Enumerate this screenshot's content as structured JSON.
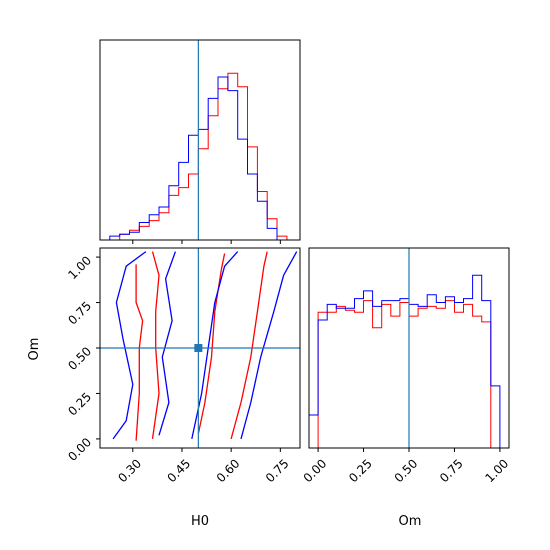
{
  "chart_data": {
    "type": "corner",
    "colors": {
      "red": "#ff0000",
      "blue": "#0000ff",
      "truth": "#1f77b4",
      "frame": "#000000"
    },
    "truth": {
      "H0": 0.5,
      "Om": 0.5
    },
    "labels": {
      "x_bottom_left": "H0",
      "y_bottom_left": "Om",
      "x_bottom_right": "Om"
    },
    "h0_ticks": [
      "0.30",
      "0.45",
      "0.60",
      "0.75"
    ],
    "om_ticks": [
      "0.00",
      "0.25",
      "0.50",
      "0.75",
      "1.00"
    ],
    "hist_h0": {
      "title": "",
      "xlim": [
        0.2,
        0.81
      ],
      "bins": [
        0.23,
        0.26,
        0.29,
        0.32,
        0.35,
        0.38,
        0.41,
        0.44,
        0.47,
        0.5,
        0.53,
        0.56,
        0.59,
        0.62,
        0.65,
        0.68,
        0.71,
        0.74,
        0.77
      ],
      "series": [
        {
          "color": "red",
          "values": [
            0.0,
            0.03,
            0.05,
            0.07,
            0.1,
            0.14,
            0.23,
            0.27,
            0.34,
            0.47,
            0.64,
            0.78,
            0.86,
            0.79,
            0.48,
            0.25,
            0.11,
            0.02
          ]
        },
        {
          "color": "blue",
          "values": [
            0.02,
            0.03,
            0.04,
            0.09,
            0.13,
            0.17,
            0.28,
            0.4,
            0.54,
            0.57,
            0.73,
            0.84,
            0.77,
            0.52,
            0.34,
            0.2,
            0.06,
            0.0
          ]
        }
      ]
    },
    "hist_om": {
      "xlim": [
        -0.05,
        1.05
      ],
      "bins": [
        -0.05,
        0.0,
        0.05,
        0.1,
        0.15,
        0.2,
        0.25,
        0.3,
        0.35,
        0.4,
        0.45,
        0.5,
        0.55,
        0.6,
        0.65,
        0.7,
        0.75,
        0.8,
        0.85,
        0.9,
        0.95,
        1.0
      ],
      "series": [
        {
          "color": "red",
          "values": [
            0.0,
            0.7,
            0.7,
            0.73,
            0.71,
            0.7,
            0.76,
            0.62,
            0.74,
            0.68,
            0.75,
            0.68,
            0.72,
            0.73,
            0.72,
            0.76,
            0.7,
            0.74,
            0.68,
            0.65,
            0.0
          ]
        },
        {
          "color": "blue",
          "values": [
            0.17,
            0.66,
            0.74,
            0.72,
            0.72,
            0.77,
            0.81,
            0.73,
            0.76,
            0.76,
            0.77,
            0.74,
            0.73,
            0.79,
            0.75,
            0.78,
            0.75,
            0.77,
            0.89,
            0.76,
            0.32
          ]
        }
      ],
      "truth": 0.5
    },
    "joint": {
      "xlim": [
        0.2,
        0.81
      ],
      "ylim": [
        -0.05,
        1.05
      ],
      "truth": [
        0.5,
        0.5
      ],
      "contours": [
        {
          "color": "red",
          "points": [
            [
              0.31,
              -0.01
            ],
            [
              0.32,
              0.25
            ],
            [
              0.32,
              0.5
            ],
            [
              0.33,
              0.65
            ],
            [
              0.31,
              0.75
            ],
            [
              0.31,
              0.96
            ]
          ]
        },
        {
          "color": "red",
          "points": [
            [
              0.36,
              0.0
            ],
            [
              0.38,
              0.25
            ],
            [
              0.37,
              0.5
            ],
            [
              0.37,
              0.7
            ],
            [
              0.38,
              0.9
            ],
            [
              0.36,
              1.03
            ]
          ]
        },
        {
          "color": "red",
          "points": [
            [
              0.5,
              0.03
            ],
            [
              0.52,
              0.2
            ],
            [
              0.54,
              0.45
            ],
            [
              0.55,
              0.7
            ],
            [
              0.57,
              0.93
            ],
            [
              0.58,
              1.02
            ]
          ]
        },
        {
          "color": "red",
          "points": [
            [
              0.6,
              0.0
            ],
            [
              0.63,
              0.2
            ],
            [
              0.66,
              0.45
            ],
            [
              0.68,
              0.7
            ],
            [
              0.7,
              0.95
            ],
            [
              0.71,
              1.03
            ]
          ]
        },
        {
          "color": "blue",
          "points": [
            [
              0.24,
              0.0
            ],
            [
              0.28,
              0.1
            ],
            [
              0.3,
              0.3
            ],
            [
              0.27,
              0.55
            ],
            [
              0.25,
              0.75
            ],
            [
              0.28,
              0.95
            ],
            [
              0.34,
              1.03
            ]
          ]
        },
        {
          "color": "blue",
          "points": [
            [
              0.38,
              0.02
            ],
            [
              0.41,
              0.2
            ],
            [
              0.39,
              0.45
            ],
            [
              0.42,
              0.65
            ],
            [
              0.4,
              0.88
            ],
            [
              0.43,
              1.03
            ]
          ]
        },
        {
          "color": "blue",
          "points": [
            [
              0.48,
              0.0
            ],
            [
              0.51,
              0.25
            ],
            [
              0.53,
              0.5
            ],
            [
              0.55,
              0.75
            ],
            [
              0.58,
              0.95
            ],
            [
              0.62,
              1.03
            ]
          ]
        },
        {
          "color": "blue",
          "points": [
            [
              0.63,
              0.0
            ],
            [
              0.66,
              0.2
            ],
            [
              0.69,
              0.45
            ],
            [
              0.73,
              0.7
            ],
            [
              0.76,
              0.9
            ],
            [
              0.8,
              1.03
            ]
          ]
        }
      ]
    }
  }
}
